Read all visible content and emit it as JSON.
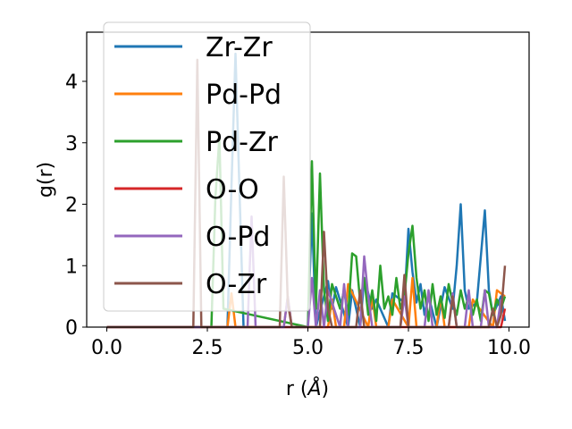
{
  "chart_data": {
    "type": "line",
    "xlabel_prefix": "r (",
    "xlabel_unit": "Å",
    "xlabel_suffix": ")",
    "ylabel": "g(r)",
    "xlim": [
      -0.5,
      10.5
    ],
    "ylim": [
      0,
      4.8
    ],
    "x_ticks": [
      0.0,
      2.5,
      5.0,
      7.5,
      10.0
    ],
    "x_tick_labels": [
      "0.0",
      "2.5",
      "5.0",
      "7.5",
      "10.0"
    ],
    "y_ticks": [
      0,
      1,
      2,
      3,
      4
    ],
    "y_tick_labels": [
      "0",
      "1",
      "2",
      "3",
      "4"
    ],
    "legend_position": "upper-left",
    "grid": false,
    "series": [
      {
        "name": "Zr-Zr",
        "color": "#1f77b4",
        "x": [
          0,
          3.0,
          3.1,
          3.2,
          3.3,
          3.4,
          5.0,
          5.1,
          5.2,
          5.5,
          5.6,
          5.7,
          6.0,
          6.1,
          6.3,
          6.4,
          6.6,
          6.7,
          7.0,
          7.1,
          7.4,
          7.5,
          7.6,
          7.7,
          7.8,
          7.9,
          8.0,
          8.2,
          8.4,
          8.6,
          8.7,
          8.8,
          8.9,
          9.0,
          9.2,
          9.4,
          9.5,
          9.6,
          9.8,
          9.9
        ],
        "y": [
          0,
          0,
          2.3,
          4.45,
          2.2,
          0,
          0,
          1.85,
          0,
          0.75,
          0.3,
          0.65,
          0,
          0.6,
          0,
          0.8,
          0.3,
          0.45,
          0,
          0.55,
          0.4,
          1.6,
          0.9,
          0.4,
          0.7,
          0.2,
          0.5,
          0,
          0.65,
          0.3,
          1.0,
          2.0,
          0.6,
          0.3,
          0.4,
          1.9,
          0.6,
          0.2,
          0.5,
          0.1
        ]
      },
      {
        "name": "Pd-Pd",
        "color": "#ff7f0e",
        "x": [
          0,
          3.0,
          3.1,
          3.2,
          4.4,
          4.5,
          4.6,
          5.0,
          5.5,
          5.6,
          5.7,
          5.9,
          6.0,
          6.5,
          6.6,
          6.7,
          7.0,
          7.1,
          7.5,
          7.6,
          7.7,
          8.2,
          8.3,
          8.4,
          9.0,
          9.1,
          9.6,
          9.7,
          9.9
        ],
        "y": [
          0,
          0,
          0.55,
          0,
          0,
          0.5,
          0,
          0,
          0,
          0.45,
          0,
          0,
          0.7,
          0,
          0.5,
          0,
          0,
          0.45,
          0,
          0.8,
          0,
          0,
          0.5,
          0,
          0,
          0.45,
          0,
          0.6,
          0.5
        ]
      },
      {
        "name": "Pd-Zr",
        "color": "#2ca02c",
        "x": [
          0,
          2.6,
          2.7,
          2.8,
          2.9,
          5.0,
          5.1,
          5.2,
          5.3,
          5.4,
          5.5,
          5.6,
          5.7,
          5.8,
          5.9,
          6.0,
          6.1,
          6.2,
          6.3,
          6.4,
          6.5,
          6.6,
          6.7,
          6.8,
          6.9,
          7.0,
          7.1,
          7.2,
          7.3,
          7.4,
          7.5,
          7.6,
          7.7,
          7.8,
          7.9,
          8.0,
          8.1,
          8.2,
          8.3,
          8.4,
          8.5,
          8.6,
          8.7,
          8.8,
          8.9,
          9.0,
          9.1,
          9.2,
          9.3,
          9.4,
          9.5,
          9.6,
          9.7,
          9.8,
          9.9
        ],
        "y": [
          0,
          0,
          2.1,
          3.1,
          0.3,
          0,
          2.7,
          0.3,
          2.5,
          0.6,
          0.1,
          0.7,
          0.5,
          0.3,
          0.6,
          0.2,
          1.2,
          1.15,
          0.4,
          0.8,
          0.2,
          0.6,
          0.1,
          1.0,
          0.3,
          0.5,
          0.2,
          0.8,
          0.3,
          0.5,
          1.2,
          1.65,
          0.8,
          0.3,
          0.6,
          0.1,
          0.7,
          0.2,
          0.5,
          0.15,
          0.7,
          0.4,
          0.2,
          0.6,
          0.3,
          0.5,
          0.2,
          0.45,
          0.1,
          0.6,
          0.55,
          0.2,
          0.45,
          0.3,
          0.5
        ]
      },
      {
        "name": "O-O",
        "color": "#d62728",
        "x": [
          0,
          9.8,
          9.9
        ],
        "y": [
          0,
          0,
          0.3
        ]
      },
      {
        "name": "O-Pd",
        "color": "#9467bd",
        "x": [
          0,
          3.5,
          3.6,
          3.7,
          4.4,
          4.5,
          4.6,
          5.0,
          5.1,
          5.2,
          5.3,
          5.4,
          5.5,
          5.8,
          5.9,
          6.0,
          6.3,
          6.4,
          6.5,
          6.6,
          7.3,
          7.4,
          7.5,
          7.9,
          8.0,
          8.1,
          8.5,
          8.6,
          8.7,
          8.9,
          9.0,
          9.1,
          9.3,
          9.4,
          9.5,
          9.7,
          9.8
        ],
        "y": [
          0,
          0,
          1.8,
          0,
          0,
          0.5,
          0,
          0,
          0.8,
          0,
          0.6,
          0,
          0.6,
          0,
          0.7,
          0,
          0,
          1.15,
          0.5,
          0,
          0,
          0.5,
          0,
          0,
          0.6,
          0,
          0,
          0.55,
          0,
          0,
          0.6,
          0,
          0,
          0.6,
          0,
          0,
          0.45
        ]
      },
      {
        "name": "O-Zr",
        "color": "#8c564b",
        "x": [
          0,
          2.15,
          2.25,
          2.35,
          4.3,
          4.4,
          4.5,
          4.6,
          5.3,
          5.4,
          5.5,
          5.6,
          6.2,
          6.3,
          6.4,
          7.3,
          7.4,
          7.5,
          8.5,
          8.6,
          8.7,
          9.5,
          9.6,
          9.7,
          9.8,
          9.9
        ],
        "y": [
          0,
          0,
          4.35,
          0,
          0,
          2.45,
          0.4,
          0,
          0,
          1.55,
          0.3,
          0,
          0,
          0.6,
          0,
          0,
          0.85,
          0,
          0,
          0.5,
          0,
          0,
          0.3,
          0,
          0.2,
          1.0
        ]
      }
    ]
  }
}
